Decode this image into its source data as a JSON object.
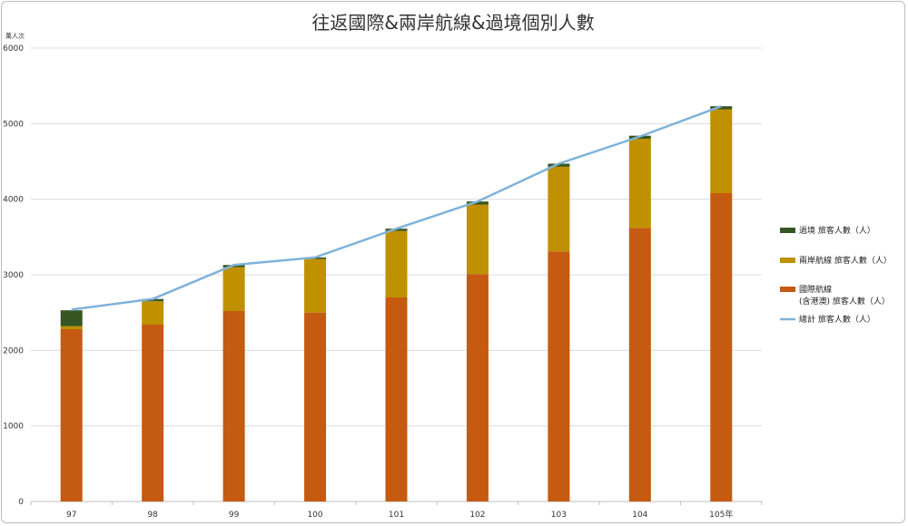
{
  "chart_data": {
    "type": "bar",
    "stacked": true,
    "title": "往返國際&兩岸航線&過境個別人數",
    "ylabel": "萬人次",
    "xlabel": "",
    "categories": [
      "97",
      "98",
      "99",
      "100",
      "101",
      "102",
      "103",
      "104",
      "105年"
    ],
    "ylim": [
      0,
      6000
    ],
    "yticks": [
      0,
      1000,
      2000,
      3000,
      4000,
      5000,
      6000
    ],
    "grid": true,
    "legend_position": "right",
    "series": [
      {
        "name": "國際航線\n(含港澳) 旅客人數（人）",
        "legend_lines": [
          "國際航線",
          "(含港澳) 旅客人數（人）"
        ],
        "kind": "bar",
        "color": "#c55a11",
        "values": [
          2280,
          2340,
          2520,
          2500,
          2700,
          3010,
          3310,
          3620,
          4080
        ]
      },
      {
        "name": "兩岸航線 旅客人數（人）",
        "legend_lines": [
          "兩岸航線 旅客人數（人）"
        ],
        "kind": "bar",
        "color": "#bf9000",
        "values": [
          40,
          310,
          580,
          710,
          880,
          920,
          1120,
          1180,
          1110
        ]
      },
      {
        "name": "過境 旅客人數（人）",
        "legend_lines": [
          "過境 旅客人數（人）"
        ],
        "kind": "bar",
        "color": "#375623",
        "values": [
          210,
          30,
          30,
          20,
          30,
          40,
          40,
          40,
          40
        ]
      },
      {
        "name": "總計 旅客人數（人）",
        "legend_lines": [
          "總計 旅客人數（人）"
        ],
        "kind": "line",
        "color": "#7fb2d9",
        "values": [
          2540,
          2680,
          3130,
          3230,
          3610,
          3970,
          4470,
          4830,
          5230
        ]
      }
    ],
    "legend_order": [
      2,
      1,
      0,
      3
    ]
  }
}
